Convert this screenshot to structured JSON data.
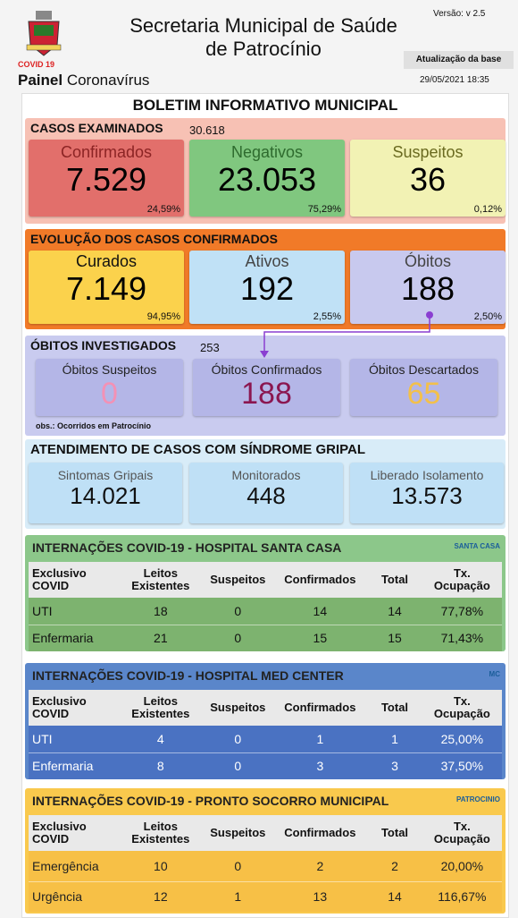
{
  "header": {
    "title": "Secretaria Municipal de Saúde de Patrocínio",
    "badge": "COVID 19",
    "panel": "Painel",
    "panel_sub": "Coronavírus",
    "version": "Versão: v 2.5",
    "update_label": "Atualização da base",
    "update_date": "29/05/2021 18:35"
  },
  "bulletin_title": "BOLETIM INFORMATIVO MUNICIPAL",
  "examined": {
    "title": "CASOS EXAMINADOS",
    "total": "30.618",
    "cards": [
      {
        "label": "Confirmados",
        "value": "7.529",
        "pct": "24,59%"
      },
      {
        "label": "Negativos",
        "value": "23.053",
        "pct": "75,29%"
      },
      {
        "label": "Suspeitos",
        "value": "36",
        "pct": "0,12%"
      }
    ]
  },
  "evolution": {
    "title": "EVOLUÇÃO DOS CASOS CONFIRMADOS",
    "cards": [
      {
        "label": "Curados",
        "value": "7.149",
        "pct": "94,95%"
      },
      {
        "label": "Ativos",
        "value": "192",
        "pct": "2,55%"
      },
      {
        "label": "Óbitos",
        "value": "188",
        "pct": "2,50%"
      }
    ]
  },
  "deaths": {
    "title": "ÓBITOS INVESTIGADOS",
    "total": "253",
    "cards": [
      {
        "label": "Óbitos Suspeitos",
        "value": "0"
      },
      {
        "label": "Óbitos Confirmados",
        "value": "188"
      },
      {
        "label": "Óbitos Descartados",
        "value": "65"
      }
    ],
    "note": "obs.: Ocorridos em Patrocínio"
  },
  "flu": {
    "title": "ATENDIMENTO DE CASOS COM SÍNDROME GRIPAL",
    "cards": [
      {
        "label": "Sintomas Gripais",
        "value": "14.021"
      },
      {
        "label": "Monitorados",
        "value": "448"
      },
      {
        "label": "Liberado Isolamento",
        "value": "13.573"
      }
    ]
  },
  "hospitals": [
    {
      "title": "INTERNAÇÕES COVID-19 - HOSPITAL SANTA CASA",
      "logo": "SANTA CASA",
      "header": [
        "Exclusivo COVID",
        "Leitos Existentes",
        "Suspeitos",
        "Confirmados",
        "Total",
        "Tx. Ocupação"
      ],
      "rows": [
        [
          "UTI",
          "18",
          "0",
          "14",
          "14",
          "77,78%"
        ],
        [
          "Enfermaria",
          "21",
          "0",
          "15",
          "15",
          "71,43%"
        ]
      ]
    },
    {
      "title": "INTERNAÇÕES COVID-19 - HOSPITAL MED CENTER",
      "logo": "MC",
      "header": [
        "Exclusivo COVID",
        "Leitos Existentes",
        "Suspeitos",
        "Confirmados",
        "Total",
        "Tx. Ocupação"
      ],
      "rows": [
        [
          "UTI",
          "4",
          "0",
          "1",
          "1",
          "25,00%"
        ],
        [
          "Enfermaria",
          "8",
          "0",
          "3",
          "3",
          "37,50%"
        ]
      ]
    },
    {
      "title": "INTERNAÇÕES COVID-19 - PRONTO SOCORRO MUNICIPAL",
      "logo": "PATROCINIO",
      "header": [
        "Exclusivo COVID",
        "Leitos Existentes",
        "Suspeitos",
        "Confirmados",
        "Total",
        "Tx. Ocupação"
      ],
      "rows": [
        [
          "Emergência",
          "10",
          "0",
          "2",
          "2",
          "20,00%"
        ],
        [
          "Urgência",
          "12",
          "1",
          "13",
          "14",
          "116,67%"
        ]
      ]
    }
  ]
}
